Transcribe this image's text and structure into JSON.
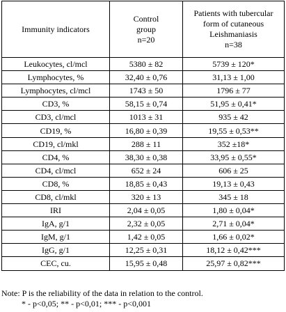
{
  "table": {
    "header": [
      [
        "Immunity indicators"
      ],
      [
        "Control",
        "group",
        "n=20"
      ],
      [
        "Patients with tubercular",
        "form of cutaneous",
        "Leishmaniasis",
        "n=38"
      ]
    ],
    "rows": [
      [
        "Leukocytes, cl/mcl",
        "5380 ± 82",
        "5739 ± 120*"
      ],
      [
        "Lymphocytes, %",
        "32,40 ± 0,76",
        "31,13 ± 1,00"
      ],
      [
        "Lymphocytes, cl/mcl",
        "1743 ± 50",
        "1796 ± 77"
      ],
      [
        "CD3, %",
        "58,15 ± 0,74",
        "51,95 ± 0,41*"
      ],
      [
        "CD3, cl/mcl",
        "1013 ± 31",
        "935 ± 42"
      ],
      [
        "CD19, %",
        "16,80 ± 0,39",
        "19,55 ± 0,53**"
      ],
      [
        "CD19, cl/mkl",
        "288 ± 11",
        "352 ±18*"
      ],
      [
        "CD4, %",
        "38,30 ± 0,38",
        "33,95 ± 0,55*"
      ],
      [
        "CD4, cl/mcl",
        "652 ± 24",
        "606 ± 25"
      ],
      [
        "CD8, %",
        "18,85 ± 0,43",
        "19,13 ± 0,43"
      ],
      [
        "CD8, cl/mkl",
        "320 ± 13",
        "345 ± 18"
      ],
      [
        "IRI",
        "2,04 ± 0,05",
        "1,80 ± 0,04*"
      ],
      [
        "IgA, g/1",
        "2,32 ± 0,05",
        "2,71 ± 0,04*"
      ],
      [
        "IgM, g/1",
        "1,42 ± 0,05",
        "1,66 ± 0,02*"
      ],
      [
        "IgG, g/1",
        "12,25 ± 0,31",
        "18,12 ± 0,42***"
      ],
      [
        "CEC, cu.",
        "15,95 ± 0,48",
        "25,97 ± 0,82***"
      ]
    ]
  },
  "note": [
    "Note: P is the reliability of the data in relation to the control.",
    "* - p<0,05; ** - p<0,01; *** - p<0,001"
  ]
}
